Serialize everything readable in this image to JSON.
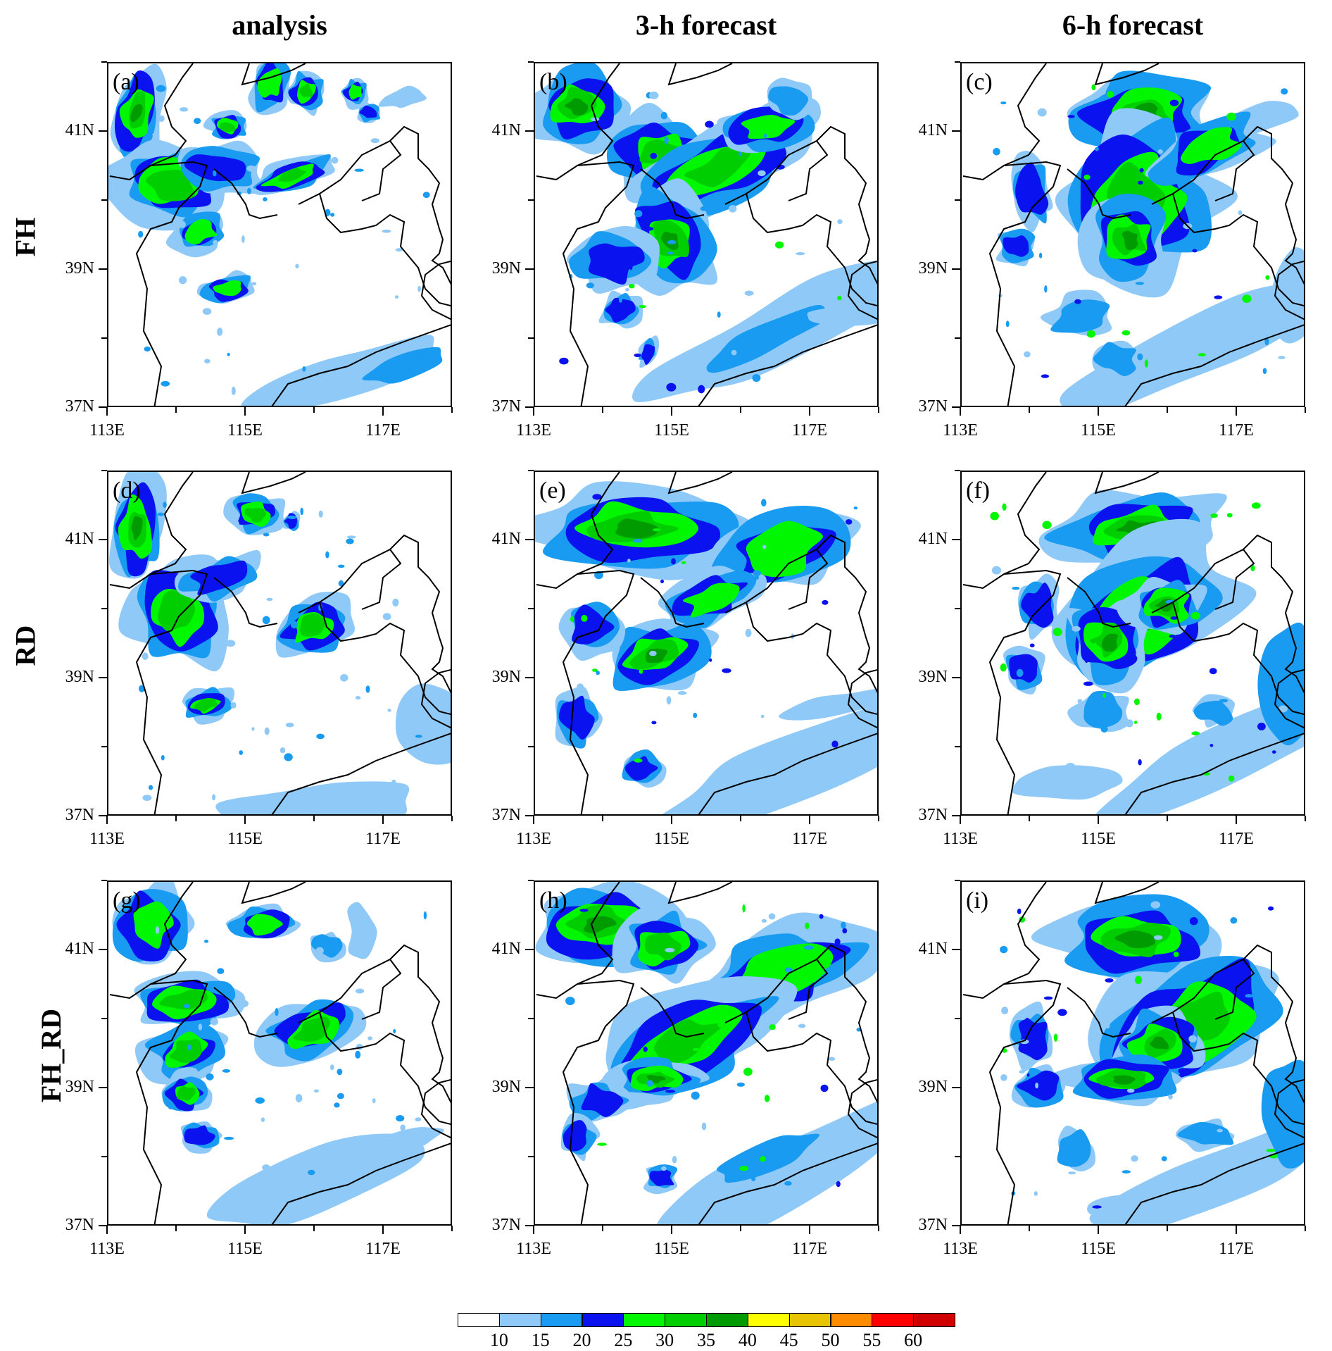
{
  "columns": [
    "analysis",
    "3-h forecast",
    "6-h forecast"
  ],
  "rows": [
    "FH",
    "RD",
    "FH_RD"
  ],
  "panel_labels": [
    "(a)",
    "(b)",
    "(c)",
    "(d)",
    "(e)",
    "(f)",
    "(g)",
    "(h)",
    "(i)"
  ],
  "axes": {
    "lat_labels": [
      "41N",
      "39N",
      "37N"
    ],
    "lon_labels": [
      "113E",
      "115E",
      "117E"
    ],
    "lon_range": [
      113,
      118
    ],
    "lat_range": [
      37,
      42
    ]
  },
  "colorbar": {
    "levels": [
      "10",
      "15",
      "20",
      "25",
      "30",
      "35",
      "40",
      "45",
      "50",
      "55",
      "60"
    ],
    "colors": [
      "#ffffff",
      "#8fc9f7",
      "#189bf0",
      "#0a12f0",
      "#00f700",
      "#00ce00",
      "#009b00",
      "#ffff00",
      "#e8c400",
      "#ff8c00",
      "#ff0000",
      "#d00000"
    ]
  }
}
